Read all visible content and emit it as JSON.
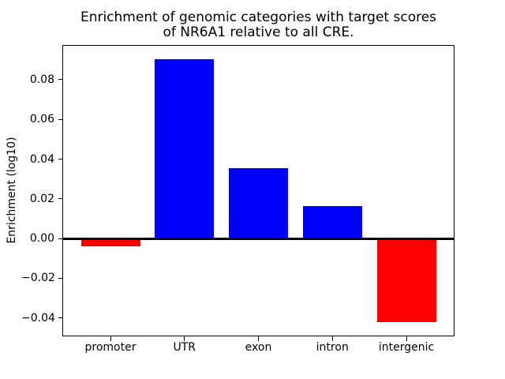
{
  "figure": {
    "background_color": "#ffffff",
    "text_color": "#000000"
  },
  "chart_data": {
    "type": "bar",
    "title": "Enrichment of genomic categories with target scores\nof NR6A1 relative to all CRE.",
    "xlabel": "",
    "ylabel": "Enrichment (log10)",
    "categories": [
      "promoter",
      "UTR",
      "exon",
      "intron",
      "intergenic"
    ],
    "values": [
      -0.004,
      0.0905,
      0.0355,
      0.0165,
      -0.042
    ],
    "bar_colors": [
      "#ff0000",
      "#0000ff",
      "#0000ff",
      "#0000ff",
      "#ff0000"
    ],
    "positive_color": "#0000ff",
    "negative_color": "#ff0000",
    "axis_color": "#000000",
    "ylim": [
      -0.0489,
      0.0971
    ],
    "xlim": [
      -0.64,
      4.64
    ],
    "bar_width": 0.8,
    "yticks": [
      {
        "value": 0.08,
        "label": "0.08"
      },
      {
        "value": 0.06,
        "label": "0.06"
      },
      {
        "value": 0.04,
        "label": "0.04"
      },
      {
        "value": 0.02,
        "label": "0.02"
      },
      {
        "value": 0.0,
        "label": "0.00"
      },
      {
        "value": -0.02,
        "label": "−0.02"
      },
      {
        "value": -0.04,
        "label": "−0.04"
      }
    ],
    "grid": false,
    "zero_line": true,
    "legend": null
  }
}
